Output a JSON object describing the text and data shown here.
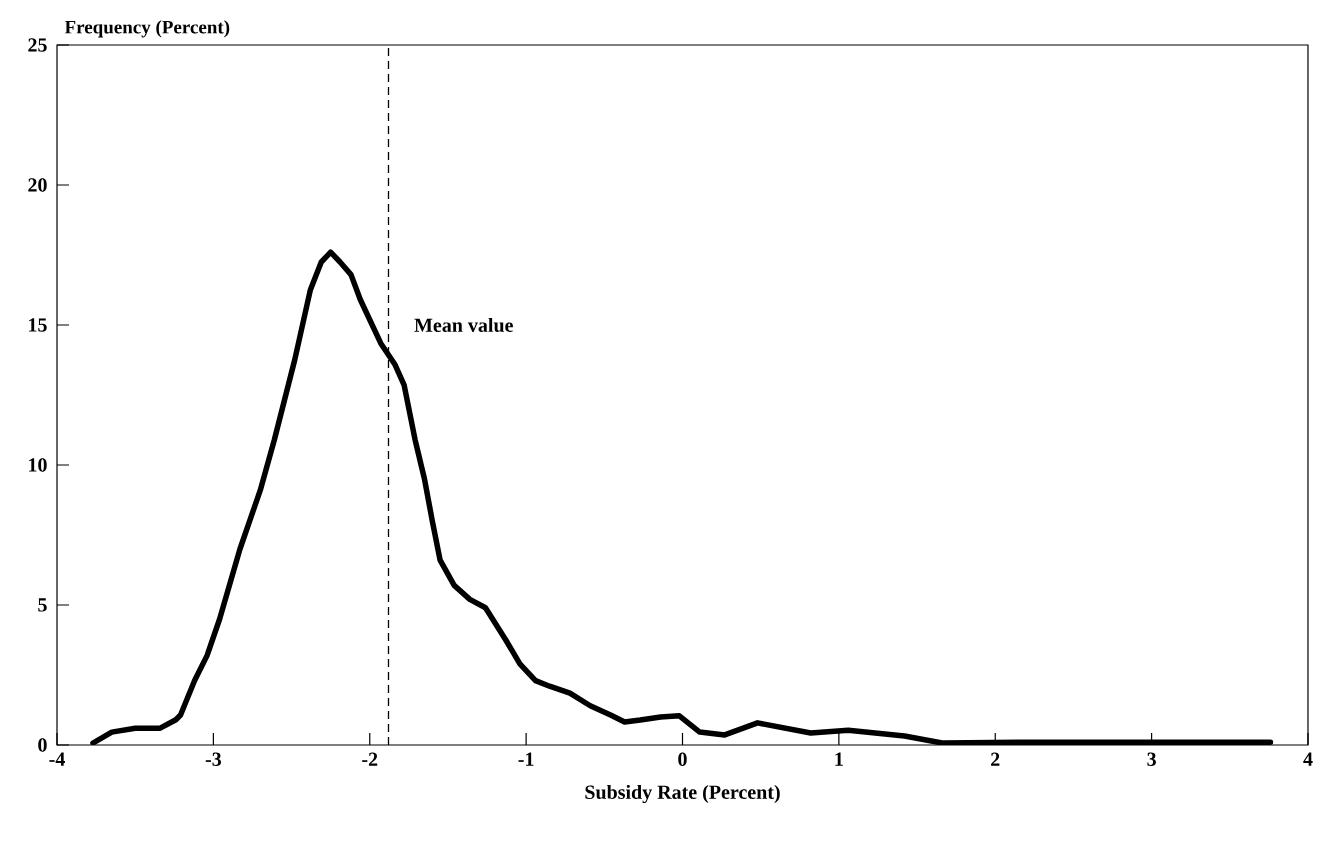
{
  "chart_data": {
    "type": "line",
    "xlabel": "Subsidy Rate (Percent)",
    "ylabel": "Frequency (Percent)",
    "x": [
      -3.77,
      -3.65,
      -3.5,
      -3.34,
      -3.24,
      -3.21,
      -3.12,
      -3.04,
      -2.96,
      -2.83,
      -2.7,
      -2.61,
      -2.48,
      -2.38,
      -2.31,
      -2.25,
      -2.19,
      -2.12,
      -2.06,
      -1.93,
      -1.84,
      -1.78,
      -1.71,
      -1.65,
      -1.6,
      -1.55,
      -1.46,
      -1.36,
      -1.26,
      -1.13,
      -1.04,
      -0.94,
      -0.85,
      -0.72,
      -0.59,
      -0.46,
      -0.37,
      -0.27,
      -0.14,
      -0.02,
      0.11,
      0.27,
      0.48,
      0.82,
      1.06,
      1.42,
      1.66,
      2.2,
      3.0,
      3.76
    ],
    "series": [
      {
        "color": "#000000",
        "values": [
          0.07,
          0.46,
          0.6,
          0.6,
          0.9,
          1.07,
          2.3,
          3.2,
          4.5,
          7.0,
          9.1,
          10.9,
          13.75,
          16.25,
          17.25,
          17.6,
          17.25,
          16.8,
          15.9,
          14.35,
          13.6,
          12.85,
          10.9,
          9.5,
          8.0,
          6.6,
          5.7,
          5.2,
          4.9,
          3.75,
          2.9,
          2.3,
          2.1,
          1.85,
          1.4,
          1.07,
          0.82,
          0.89,
          1.0,
          1.04,
          0.46,
          0.36,
          0.79,
          0.43,
          0.53,
          0.32,
          0.07,
          0.1,
          0.1,
          0.1
        ]
      }
    ],
    "xlim": [
      -4,
      4
    ],
    "xticks": [
      -4,
      -3,
      -2,
      -1,
      0,
      1,
      2,
      3,
      4
    ],
    "ylim": [
      0,
      25
    ],
    "yticks": [
      0,
      5,
      10,
      15,
      20,
      25
    ],
    "ref_lines": [
      {
        "axis": "x",
        "value": -1.88,
        "label": "Mean value",
        "line_style": "dashed"
      }
    ],
    "grid": false
  }
}
